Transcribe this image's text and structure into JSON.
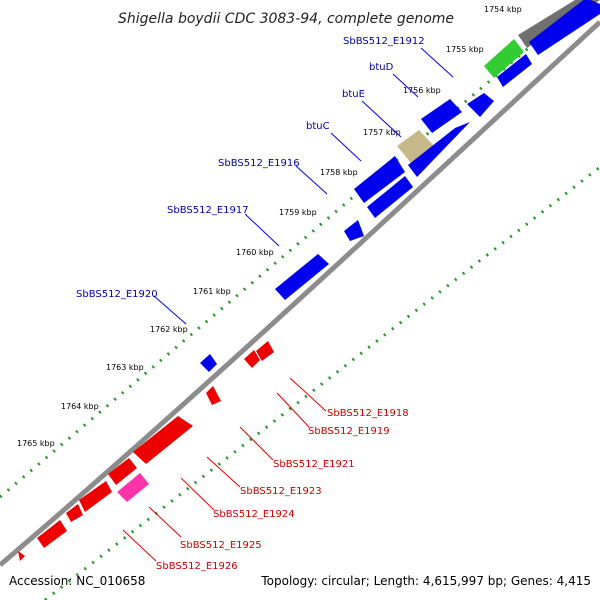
{
  "title": "Shigella boydii CDC 3083-94, complete genome",
  "footer": {
    "accession": "Accession: NC_010658",
    "summary": "Topology: circular; Length: 4,615,997 bp; Genes: 4,415"
  },
  "colors": {
    "forward_gene": "#0000ee",
    "reverse_gene": "#ee0000",
    "highlight_green": "#33cc33",
    "highlight_khaki": "#c8b98a",
    "highlight_pink": "#ff33aa",
    "grey_feature": "#707070",
    "backbone": "#8c8c8c",
    "tick": "#229922",
    "forward_label": "#0000aa",
    "reverse_label": "#cc0000"
  },
  "kbp_ticks": [
    "1754 kbp",
    "1755 kbp",
    "1756 kbp",
    "1757 kbp",
    "1758 kbp",
    "1759 kbp",
    "1760 kbp",
    "1761 kbp",
    "1762 kbp",
    "1763 kbp",
    "1764 kbp",
    "1765 kbp"
  ],
  "forward_labels": [
    "SbBS512_E1912",
    "btuD",
    "btuE",
    "btuC",
    "SbBS512_E1916",
    "SbBS512_E1917",
    "SbBS512_E1920"
  ],
  "reverse_labels": [
    "SbBS512_E1918",
    "SbBS512_E1919",
    "SbBS512_E1921",
    "SbBS512_E1923",
    "SbBS512_E1924",
    "SbBS512_E1925",
    "SbBS512_E1926"
  ]
}
